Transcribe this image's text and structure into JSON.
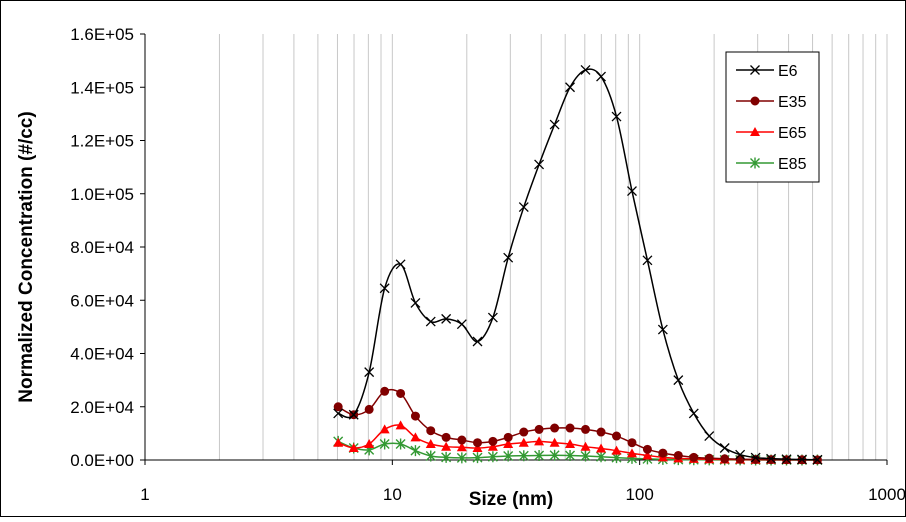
{
  "chart_data": {
    "type": "line",
    "x_scale": "log",
    "xlabel": "Size (nm)",
    "ylabel": "Normalized Concentration (#/cc)",
    "xlim": [
      1,
      1000
    ],
    "ylim": [
      0,
      160000
    ],
    "x_ticks": [
      {
        "value": 1,
        "label": "1"
      },
      {
        "value": 10,
        "label": "10"
      },
      {
        "value": 100,
        "label": "100"
      },
      {
        "value": 1000,
        "label": "1000"
      }
    ],
    "y_ticks": [
      {
        "value": 0,
        "label": "0.0E+00"
      },
      {
        "value": 20000,
        "label": "2.0E+04"
      },
      {
        "value": 40000,
        "label": "4.0E+04"
      },
      {
        "value": 60000,
        "label": "6.0E+04"
      },
      {
        "value": 80000,
        "label": "8.0E+04"
      },
      {
        "value": 100000,
        "label": "1.0E+05"
      },
      {
        "value": 120000,
        "label": "1.2E+05"
      },
      {
        "value": 140000,
        "label": "1.4E+05"
      },
      {
        "value": 160000,
        "label": "1.6E+05"
      }
    ],
    "grid": "vertical",
    "legend": "top-right",
    "x": [
      6.04,
      6.98,
      8.06,
      9.31,
      10.8,
      12.4,
      14.3,
      16.5,
      19.1,
      22.1,
      25.5,
      29.4,
      34.0,
      39.2,
      45.3,
      52.3,
      60.4,
      69.8,
      80.6,
      93.1,
      107.5,
      124.1,
      143.3,
      165.5,
      191.1,
      220.7,
      254.8,
      294.3,
      339.8,
      392.4,
      453.2,
      523.3
    ],
    "series": [
      {
        "name": "E6",
        "color": "#000000",
        "marker": "x",
        "values": [
          17500,
          17000,
          33000,
          64500,
          73500,
          59000,
          52000,
          53000,
          51000,
          44500,
          53500,
          76000,
          95000,
          111000,
          126000,
          140000,
          146500,
          144000,
          129000,
          101000,
          75000,
          49000,
          30000,
          17500,
          9000,
          4500,
          2000,
          900,
          500,
          300,
          200,
          100
        ]
      },
      {
        "name": "E35",
        "color": "#800000",
        "marker": "circle",
        "values": [
          20000,
          17000,
          19000,
          25800,
          25000,
          16500,
          11000,
          8500,
          7500,
          6500,
          7000,
          8500,
          10500,
          11500,
          12000,
          12000,
          11500,
          10500,
          9000,
          6500,
          4000,
          2600,
          1700,
          1000,
          700,
          450,
          300,
          200,
          150,
          100,
          80,
          50
        ]
      },
      {
        "name": "E65",
        "color": "#ff0000",
        "marker": "triangle",
        "values": [
          6500,
          4500,
          6000,
          11500,
          13000,
          8500,
          6000,
          5000,
          4800,
          4500,
          5000,
          6000,
          6500,
          7000,
          6500,
          6000,
          5000,
          4300,
          3500,
          2500,
          1700,
          1000,
          600,
          400,
          300,
          200,
          150,
          100,
          80,
          60,
          40,
          30
        ]
      },
      {
        "name": "E85",
        "color": "#339933",
        "marker": "star",
        "values": [
          7000,
          4500,
          3800,
          6000,
          6000,
          3500,
          1500,
          1000,
          800,
          900,
          1200,
          1500,
          1600,
          1700,
          1800,
          1700,
          1500,
          1200,
          900,
          600,
          400,
          250,
          150,
          100,
          60,
          40,
          30,
          20,
          10,
          10,
          5,
          5
        ]
      }
    ]
  }
}
